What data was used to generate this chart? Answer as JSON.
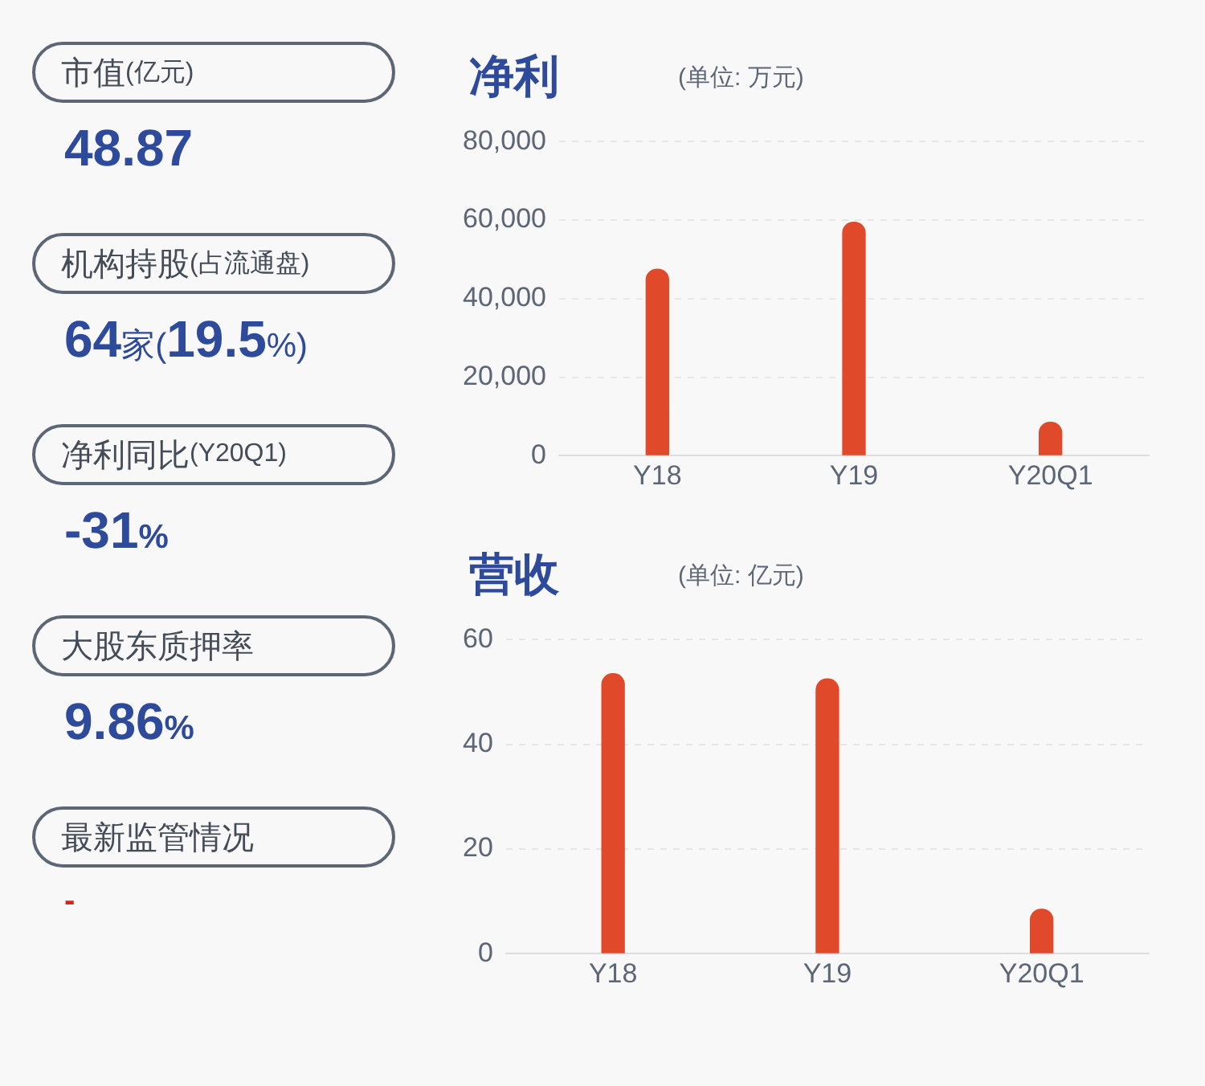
{
  "chart_data": [
    {
      "type": "other",
      "annotations": [
        "市值(亿元)",
        "48.87",
        "机构持股(占流通盘)",
        "64家(19.5%)",
        "净利同比(Y20Q1)",
        "-31%",
        "大股东质押率",
        "9.86%",
        "最新监管情况",
        "-"
      ]
    },
    {
      "type": "bar",
      "title": "净利",
      "subtitle": "(单位: 万元)",
      "categories": [
        "Y18",
        "Y19",
        "Y20Q1"
      ],
      "values": [
        47500,
        59500,
        8500
      ],
      "color": "#e04a2a",
      "ylim": [
        0,
        80000
      ],
      "yticks": [
        {
          "value": 0,
          "label": "0"
        },
        {
          "value": 20000,
          "label": "20,000"
        },
        {
          "value": 40000,
          "label": "40,000"
        },
        {
          "value": 60000,
          "label": "60,000"
        },
        {
          "value": 80000,
          "label": "80,000"
        }
      ],
      "grid": "y"
    },
    {
      "type": "bar",
      "title": "营收",
      "subtitle": "(单位: 亿元)",
      "categories": [
        "Y18",
        "Y19",
        "Y20Q1"
      ],
      "values": [
        53.5,
        52.5,
        8.5
      ],
      "color": "#e04a2a",
      "ylim": [
        0,
        60
      ],
      "yticks": [
        0,
        20,
        40,
        60
      ],
      "grid": "y"
    }
  ]
}
